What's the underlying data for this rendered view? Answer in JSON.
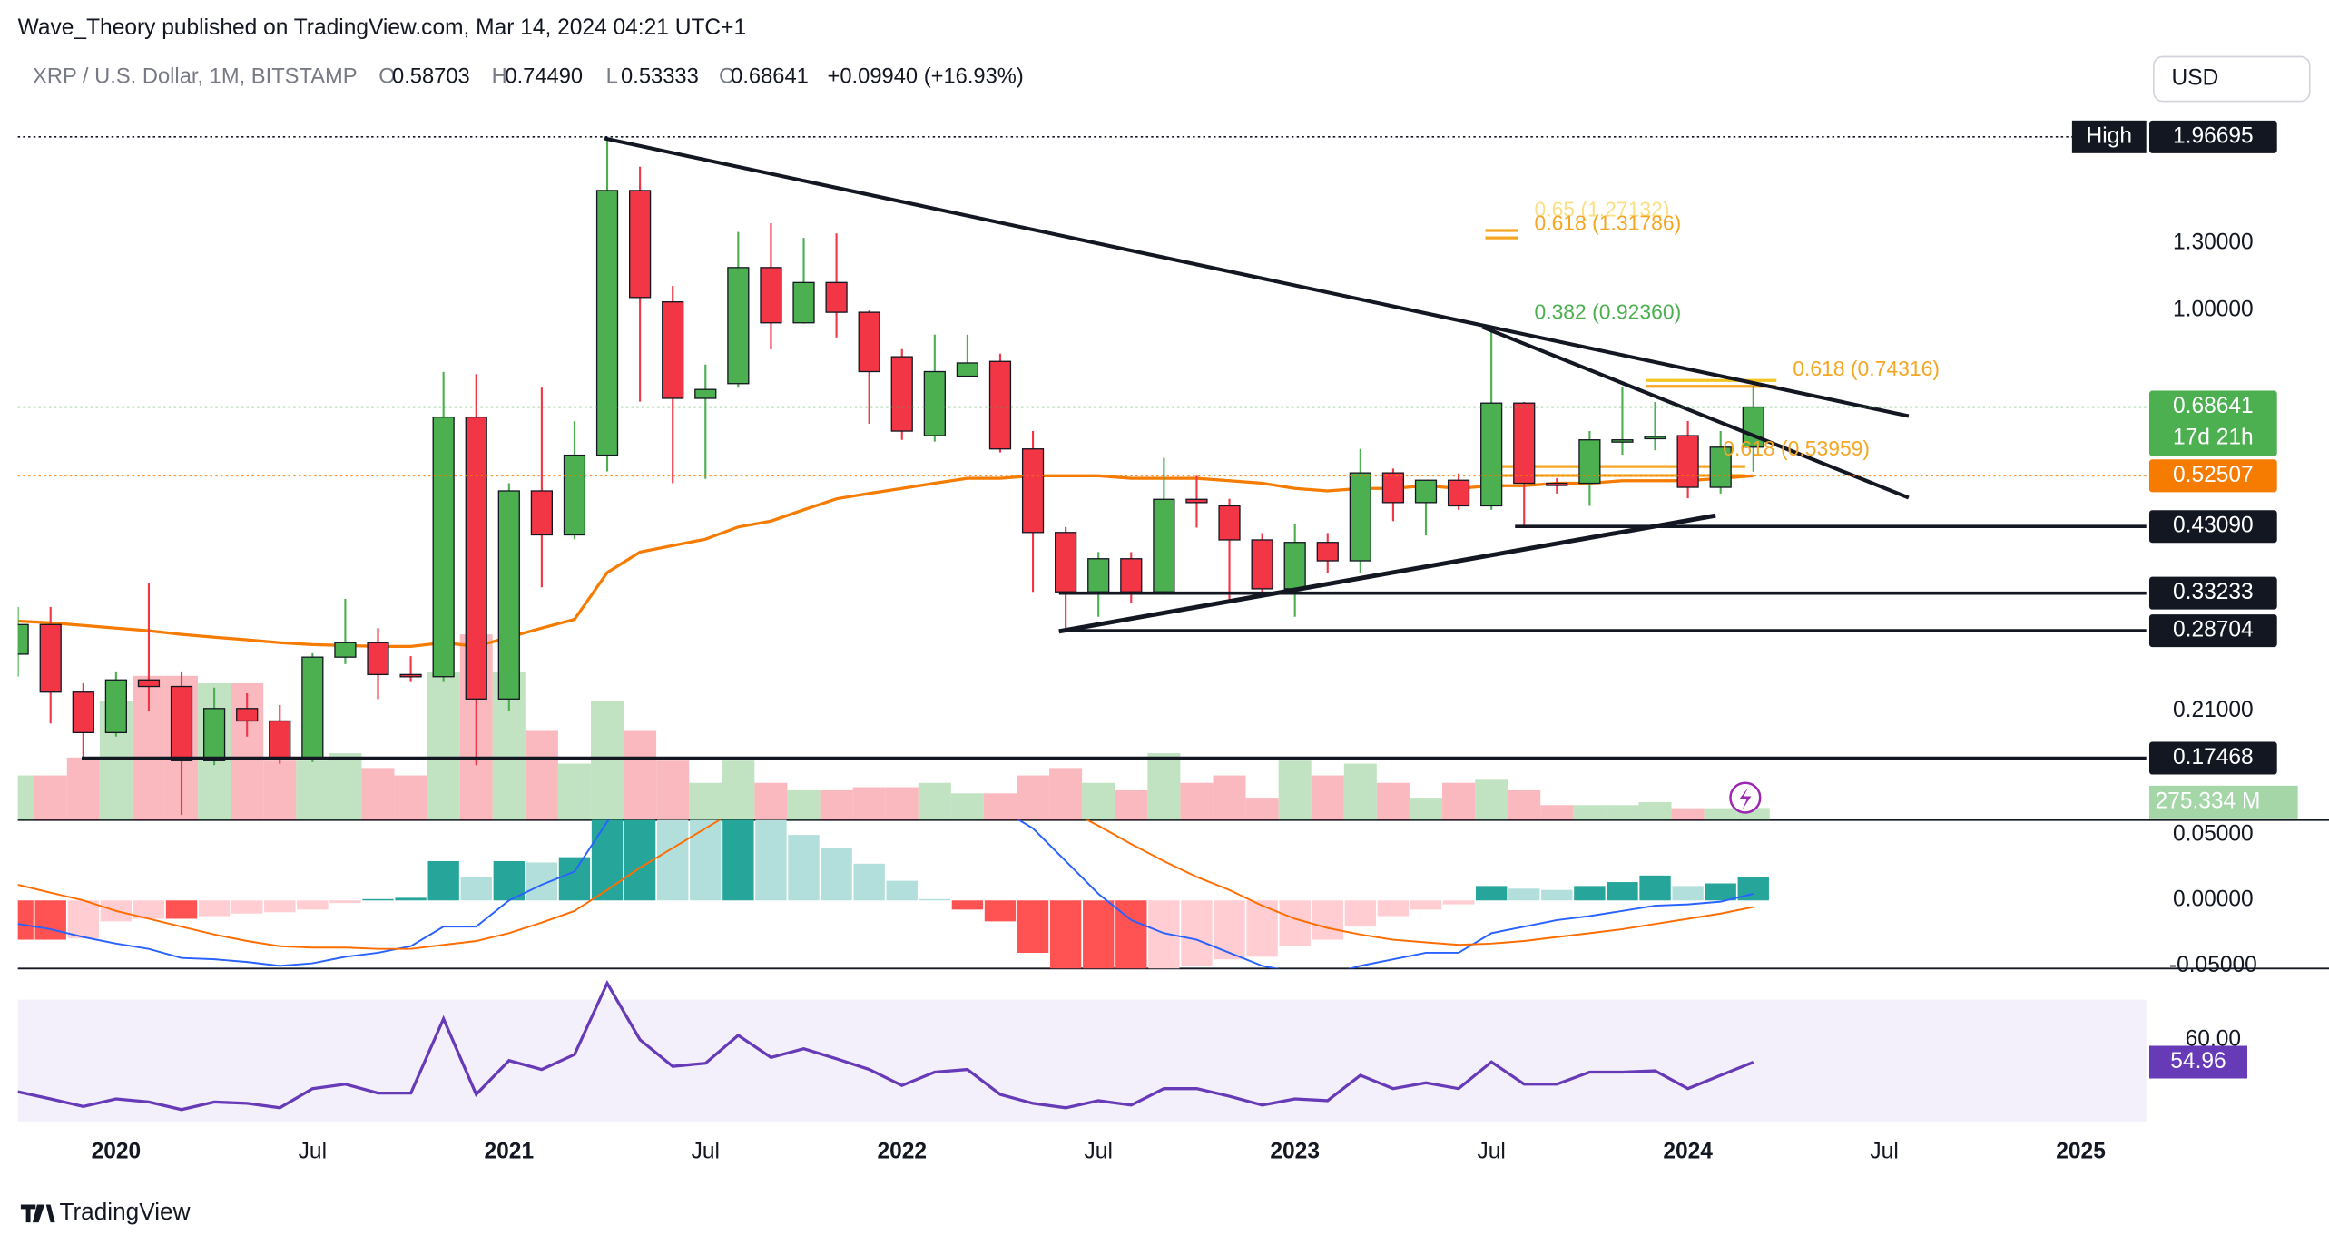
{
  "header": {
    "publisher": "Wave_Theory published on TradingView.com, Mar 14, 2024 04:21 UTC+1",
    "symbol": "XRP / U.S. Dollar, 1M, BITSTAMP",
    "ohlc": [
      {
        "key": "O",
        "value": "0.58703"
      },
      {
        "key": "H",
        "value": "0.74490"
      },
      {
        "key": "L",
        "value": "0.53333"
      },
      {
        "key": "C",
        "value": "0.68641"
      }
    ],
    "change": "+0.09940 (+16.93%)",
    "currency": "USD"
  },
  "footer": {
    "brand": "TradingView"
  },
  "chart_data": {
    "type": "candlestick",
    "log_scale": true,
    "grid": false,
    "up_color": "#4caf50",
    "down_color": "#f23645",
    "x": [
      "2019-10",
      "2019-11",
      "2019-12",
      "2020-01",
      "2020-02",
      "2020-03",
      "2020-04",
      "2020-05",
      "2020-06",
      "2020-07",
      "2020-08",
      "2020-09",
      "2020-10",
      "2020-11",
      "2020-12",
      "2021-01",
      "2021-02",
      "2021-03",
      "2021-04",
      "2021-05",
      "2021-06",
      "2021-07",
      "2021-08",
      "2021-09",
      "2021-10",
      "2021-11",
      "2021-12",
      "2022-01",
      "2022-02",
      "2022-03",
      "2022-04",
      "2022-05",
      "2022-06",
      "2022-07",
      "2022-08",
      "2022-09",
      "2022-10",
      "2022-11",
      "2022-12",
      "2023-01",
      "2023-02",
      "2023-03",
      "2023-04",
      "2023-05",
      "2023-06",
      "2023-07",
      "2023-08",
      "2023-09",
      "2023-10",
      "2023-11",
      "2023-12",
      "2024-01",
      "2024-02",
      "2024-03"
    ],
    "open": [
      0.262,
      0.294,
      0.226,
      0.193,
      0.237,
      0.231,
      0.173,
      0.212,
      0.202,
      0.175,
      0.259,
      0.274,
      0.242,
      0.24,
      0.66,
      0.22,
      0.495,
      0.417,
      0.569,
      1.596,
      1.034,
      0.71,
      0.752,
      1.182,
      0.953,
      1.115,
      0.993,
      0.835,
      0.614,
      0.774,
      0.82,
      0.583,
      0.421,
      0.334,
      0.38,
      0.334,
      0.479,
      0.467,
      0.409,
      0.338,
      0.405,
      0.377,
      0.531,
      0.473,
      0.516,
      0.467,
      0.697,
      0.51,
      0.51,
      0.6,
      0.608,
      0.614,
      0.502,
      0.58703
    ],
    "high": [
      0.315,
      0.315,
      0.234,
      0.245,
      0.346,
      0.245,
      0.23,
      0.225,
      0.215,
      0.263,
      0.325,
      0.29,
      0.26,
      0.787,
      0.78,
      0.51,
      0.74,
      0.65,
      1.96695,
      1.751,
      1.1,
      0.81,
      1.358,
      1.405,
      1.327,
      1.35,
      1.0,
      0.86,
      0.91,
      0.91,
      0.845,
      0.625,
      0.43,
      0.39,
      0.39,
      0.563,
      0.525,
      0.48,
      0.42,
      0.436,
      0.42,
      0.583,
      0.54,
      0.516,
      0.53,
      0.937,
      0.7,
      0.52,
      0.625,
      0.743,
      0.7,
      0.65,
      0.625,
      0.7449
    ],
    "low": [
      0.24,
      0.2,
      0.175,
      0.19,
      0.21,
      0.14,
      0.17,
      0.19,
      0.171,
      0.172,
      0.252,
      0.22,
      0.235,
      0.235,
      0.17,
      0.21,
      0.34,
      0.41,
      0.534,
      0.701,
      0.51,
      0.519,
      0.74,
      0.859,
      0.95,
      0.9,
      0.643,
      0.604,
      0.6,
      0.77,
      0.575,
      0.334,
      0.286,
      0.303,
      0.32,
      0.33,
      0.429,
      0.321,
      0.33,
      0.303,
      0.36,
      0.36,
      0.44,
      0.416,
      0.46,
      0.46,
      0.429,
      0.49,
      0.467,
      0.57,
      0.58,
      0.481,
      0.49,
      0.53333
    ],
    "close": [
      0.294,
      0.226,
      0.193,
      0.237,
      0.231,
      0.173,
      0.212,
      0.202,
      0.175,
      0.259,
      0.274,
      0.242,
      0.24,
      0.66,
      0.22,
      0.495,
      0.417,
      0.569,
      1.596,
      1.052,
      0.71,
      0.735,
      1.182,
      0.953,
      1.115,
      0.993,
      0.788,
      0.625,
      0.788,
      0.815,
      0.583,
      0.421,
      0.334,
      0.38,
      0.334,
      0.479,
      0.473,
      0.409,
      0.338,
      0.405,
      0.377,
      0.531,
      0.473,
      0.516,
      0.467,
      0.697,
      0.51,
      0.507,
      0.604,
      0.604,
      0.612,
      0.502,
      0.587,
      0.68641
    ],
    "xlim": [
      "2019-10",
      "2025-03"
    ],
    "xticks": [
      {
        "value": "2020-01",
        "label": "2020"
      },
      {
        "value": "2020-07",
        "label": "Jul"
      },
      {
        "value": "2021-01",
        "label": "2021"
      },
      {
        "value": "2021-07",
        "label": "Jul"
      },
      {
        "value": "2022-01",
        "label": "2022"
      },
      {
        "value": "2022-07",
        "label": "Jul"
      },
      {
        "value": "2023-01",
        "label": "2023"
      },
      {
        "value": "2023-07",
        "label": "Jul"
      },
      {
        "value": "2024-01",
        "label": "2024"
      },
      {
        "value": "2024-07",
        "label": "Jul"
      },
      {
        "value": "2025-01",
        "label": "2025"
      }
    ],
    "ylim": [
      0.1373,
      2.657
    ],
    "yticks": [
      {
        "value": 1.3,
        "label": "1.30000"
      },
      {
        "value": 1,
        "label": "1.00000"
      },
      {
        "value": 0.21,
        "label": "0.21000"
      }
    ],
    "price_labels": [
      {
        "tag": "High",
        "value": 1.96695,
        "label": "1.96695",
        "color": "#131722"
      },
      {
        "value": 0.68641,
        "label": "0.68641",
        "sub": "17d 21h",
        "color": "#4caf50"
      },
      {
        "value": 0.52507,
        "label": "0.52507",
        "color": "#f57c00"
      },
      {
        "value": 0.4309,
        "label": "0.43090",
        "color": "#131722"
      },
      {
        "value": 0.33233,
        "label": "0.33233",
        "color": "#131722"
      },
      {
        "value": 0.28704,
        "label": "0.28704",
        "color": "#131722"
      },
      {
        "value": 0.17468,
        "label": "0.17468",
        "color": "#131722"
      }
    ],
    "fib_labels": [
      "0.65 (1.27132)",
      "0.618 (1.31786)",
      "0.382 (0.92360)",
      "0.618 (0.74316)",
      "0.618 (0.53959)"
    ],
    "ma": {
      "color": "#f57c00",
      "values": [
        0.298,
        0.296,
        0.293,
        0.29,
        0.287,
        0.283,
        0.28,
        0.277,
        0.274,
        0.272,
        0.271,
        0.27,
        0.27,
        0.274,
        0.27,
        0.28,
        0.29,
        0.3,
        0.36,
        0.39,
        0.4,
        0.41,
        0.43,
        0.44,
        0.46,
        0.48,
        0.49,
        0.5,
        0.51,
        0.52,
        0.52,
        0.525,
        0.525,
        0.525,
        0.52,
        0.52,
        0.52,
        0.515,
        0.51,
        0.5,
        0.495,
        0.5,
        0.5,
        0.505,
        0.5,
        0.505,
        0.505,
        0.51,
        0.51,
        0.515,
        0.515,
        0.515,
        0.52,
        0.52507
      ]
    },
    "volume": {
      "ylim": [
        0,
        3400
      ],
      "label": {
        "value": 275.334,
        "label": "275.334 M"
      },
      "values": [
        1020,
        1020,
        1430,
        2720,
        3300,
        3300,
        3130,
        3130,
        1360,
        1360,
        1530,
        1190,
        1020,
        3400,
        4250,
        3400,
        2040,
        1290,
        2720,
        2040,
        1360,
        850,
        1360,
        850,
        680,
        680,
        750,
        750,
        850,
        610,
        610,
        1020,
        1190,
        850,
        680,
        1530,
        850,
        1020,
        510,
        1360,
        1020,
        1290,
        850,
        510,
        850,
        920,
        680,
        340,
        340,
        340,
        410,
        270,
        270,
        275.334
      ]
    },
    "macd": {
      "ylim": [
        -0.052,
        0.0614
      ],
      "yticks": [
        {
          "value": 0.05,
          "label": "0.05000"
        },
        {
          "value": 0,
          "label": "0.00000"
        },
        {
          "value": -0.05,
          "label": "-0.05000"
        }
      ],
      "hist_colors": [
        "#26a69a",
        "#b2dfdb",
        "#ff5252",
        "#ffcdd2"
      ],
      "macd_color": "#2962ff",
      "signal_color": "#ff6d00",
      "histogram": [
        -0.03,
        -0.03,
        -0.029,
        -0.016,
        -0.014,
        -0.014,
        -0.012,
        -0.01,
        -0.009,
        -0.007,
        -0.002,
        0.001,
        0.002,
        0.03,
        0.018,
        0.03,
        0.029,
        0.033,
        0.08,
        0.09,
        0.07,
        0.065,
        0.08,
        0.065,
        0.05,
        0.04,
        0.028,
        0.015,
        0.001,
        -0.007,
        -0.016,
        -0.04,
        -0.06,
        -0.07,
        -0.075,
        -0.06,
        -0.05,
        -0.045,
        -0.043,
        -0.035,
        -0.03,
        -0.02,
        -0.012,
        -0.007,
        -0.003,
        0.011,
        0.009,
        0.008,
        0.011,
        0.014,
        0.019,
        0.011,
        0.013,
        0.018
      ],
      "macd": [
        -0.018,
        -0.022,
        -0.028,
        -0.033,
        -0.037,
        -0.044,
        -0.045,
        -0.047,
        -0.05,
        -0.048,
        -0.043,
        -0.04,
        -0.035,
        -0.02,
        -0.02,
        0,
        0.012,
        0.022,
        0.06,
        0.09,
        0.1,
        0.105,
        0.12,
        0.12,
        0.115,
        0.11,
        0.1,
        0.09,
        0.085,
        0.08,
        0.07,
        0.055,
        0.03,
        0.005,
        -0.015,
        -0.025,
        -0.03,
        -0.04,
        -0.05,
        -0.055,
        -0.057,
        -0.05,
        -0.045,
        -0.04,
        -0.04,
        -0.025,
        -0.02,
        -0.015,
        -0.012,
        -0.008,
        -0.004,
        -0.003,
        -0.001,
        0.005
      ],
      "signal": [
        0.012,
        0.006,
        0,
        -0.008,
        -0.014,
        -0.02,
        -0.026,
        -0.031,
        -0.035,
        -0.036,
        -0.036,
        -0.037,
        -0.037,
        -0.034,
        -0.031,
        -0.025,
        -0.017,
        -0.008,
        0.008,
        0.025,
        0.04,
        0.055,
        0.07,
        0.08,
        0.088,
        0.093,
        0.095,
        0.094,
        0.092,
        0.09,
        0.087,
        0.08,
        0.07,
        0.057,
        0.043,
        0.03,
        0.018,
        0.008,
        -0.004,
        -0.014,
        -0.021,
        -0.026,
        -0.03,
        -0.032,
        -0.034,
        -0.033,
        -0.031,
        -0.028,
        -0.025,
        -0.022,
        -0.018,
        -0.014,
        -0.01,
        -0.005
      ]
    },
    "rsi": {
      "color": "#673ab7",
      "ylim": [
        37.3,
        76
      ],
      "yticks": [
        {
          "value": 60,
          "label": "60.00"
        }
      ],
      "last": 54.96,
      "values": [
        48.3,
        46.7,
        45,
        46.7,
        46,
        44.3,
        46,
        45.7,
        44.7,
        49,
        50,
        48,
        48,
        64.7,
        47.7,
        55.3,
        53.3,
        56.7,
        72.7,
        60,
        54,
        54.7,
        61,
        56,
        58,
        55.7,
        53.3,
        49.7,
        52.7,
        53.3,
        47.7,
        45.7,
        44.7,
        46.3,
        45.3,
        49,
        49,
        47.3,
        45.3,
        46.7,
        46.3,
        52,
        49,
        50.3,
        49,
        55,
        50,
        50,
        52.7,
        52.7,
        53,
        49,
        52,
        54.96
      ]
    }
  }
}
